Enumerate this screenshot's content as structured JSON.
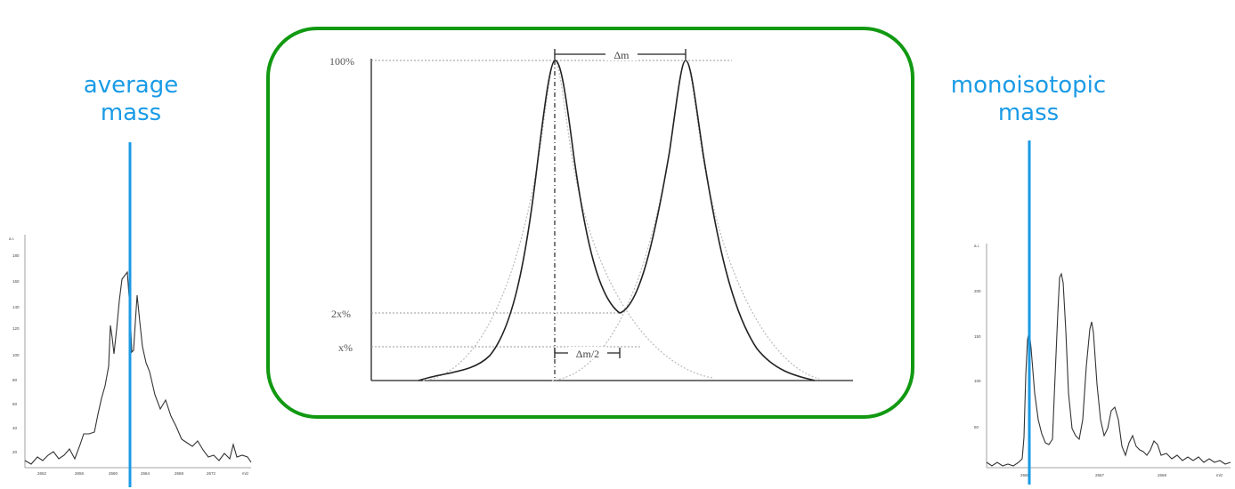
{
  "labels": {
    "average_line1": "average",
    "average_line2": "mass",
    "mono_line1": "monoisotopic",
    "mono_line2": "mass"
  },
  "colors": {
    "marker_line": "#1a9be6",
    "box_border": "#119911",
    "spectrum": "#333333"
  },
  "center_diagram": {
    "y_tick_100": "100%",
    "y_tick_2x": "2x%",
    "y_tick_x": "x%",
    "delta_m": "Δm",
    "delta_m_half": "Δm/2"
  },
  "left_spectrum": {
    "y_axis_unit": "a.i.",
    "y_ticks": [
      "180",
      "160",
      "140",
      "120",
      "100",
      "80",
      "60",
      "40",
      "20"
    ],
    "x_ticks": [
      "2652",
      "2656",
      "2660",
      "2664",
      "2668",
      "2672"
    ],
    "x_axis_unit": "m/z"
  },
  "right_spectrum": {
    "y_axis_unit": "a.i.",
    "y_ticks": [
      "200",
      "150",
      "100",
      "50"
    ],
    "x_ticks": [
      "2665",
      "2667",
      "2669"
    ],
    "x_axis_unit": "m/z"
  }
}
